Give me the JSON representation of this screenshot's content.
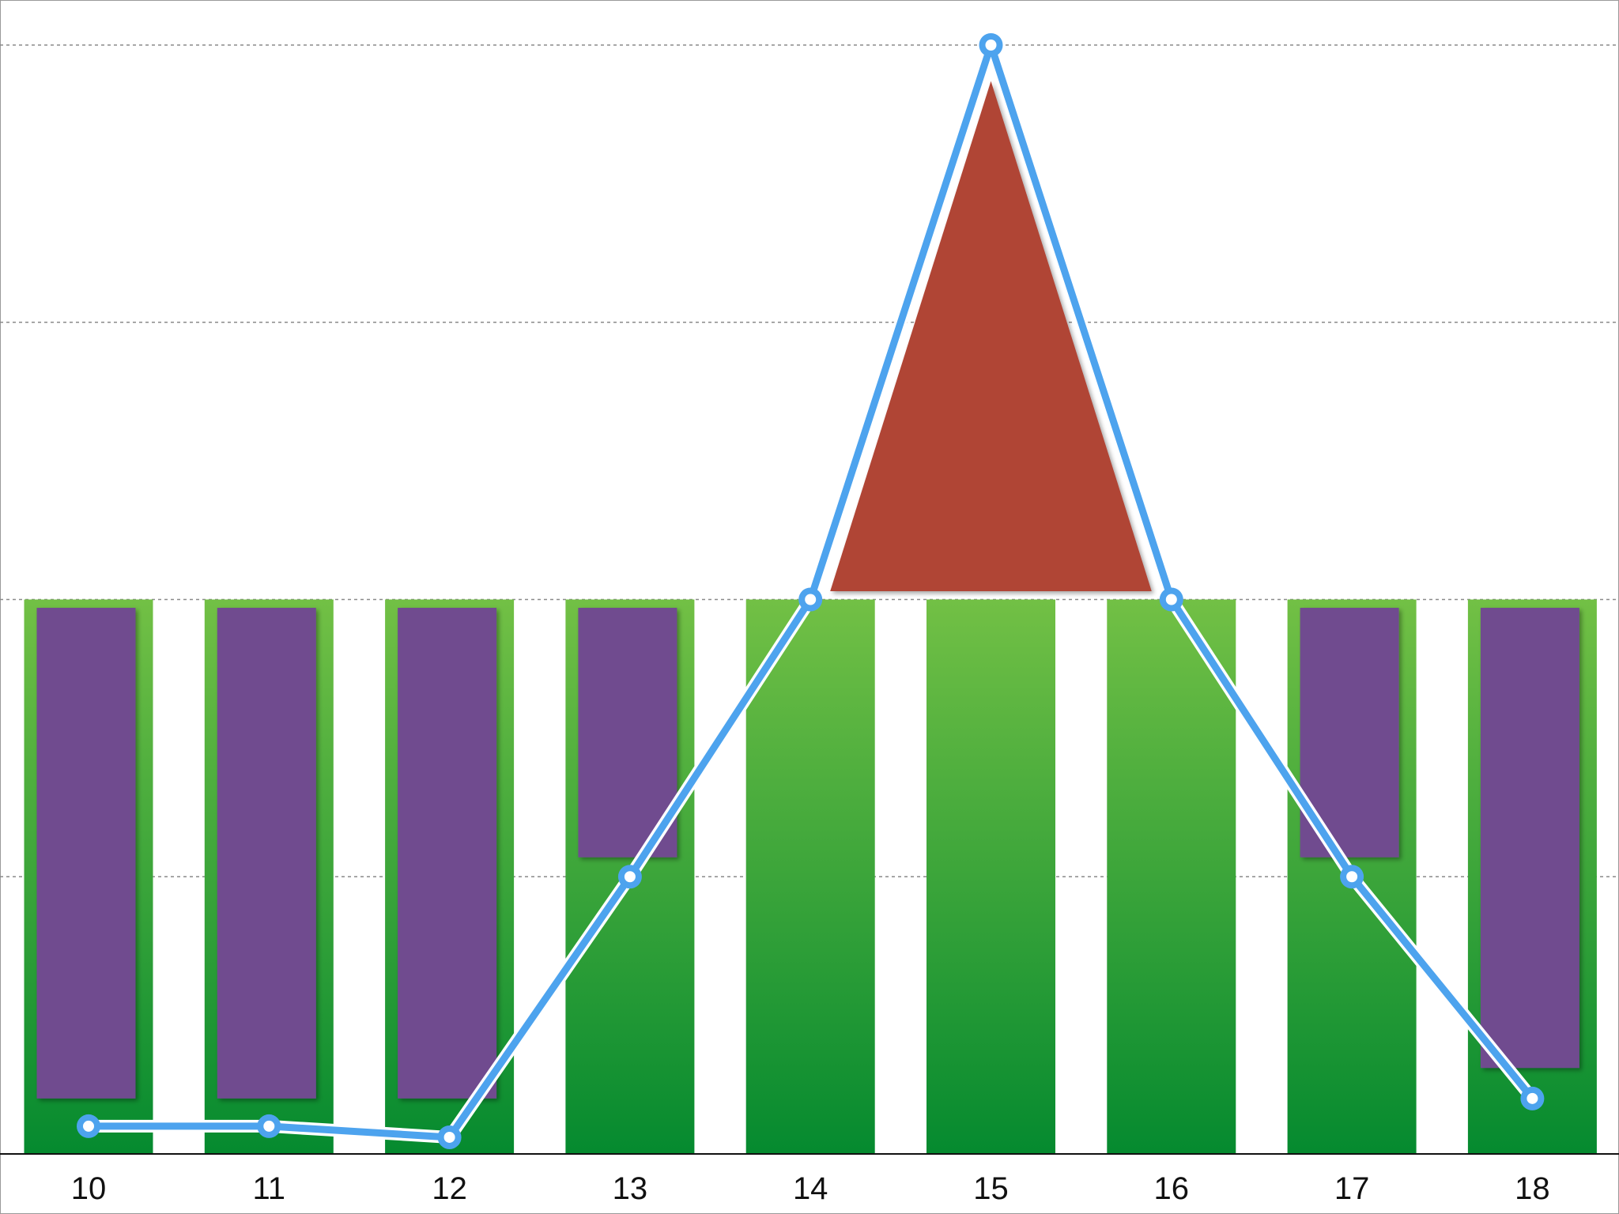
{
  "chart_data": {
    "type": "bar",
    "categories": [
      "10",
      "11",
      "12",
      "13",
      "14",
      "15",
      "16",
      "17",
      "18"
    ],
    "ylim": [
      0,
      4
    ],
    "grid": true,
    "series": [
      {
        "type": "bar",
        "values": [
          2,
          2,
          2,
          2,
          2,
          2,
          2,
          2,
          2
        ],
        "color": "#3aa33a"
      },
      {
        "type": "floating-bar",
        "ranges": [
          [
            0.2,
            1.97
          ],
          [
            0.2,
            1.97
          ],
          [
            0.2,
            1.97
          ],
          [
            1.07,
            1.97
          ],
          null,
          null,
          null,
          [
            1.07,
            1.97
          ],
          [
            0.31,
            1.97
          ]
        ],
        "color": "#6f4b8f"
      },
      {
        "type": "triangle",
        "category": "15",
        "range": [
          2.03,
          3.87
        ],
        "base_span": [
          "14",
          "16"
        ],
        "color": "#b04435"
      },
      {
        "type": "line",
        "values": [
          0.1,
          0.1,
          0.06,
          1.0,
          2.0,
          4.0,
          2.0,
          1.0,
          0.2
        ],
        "color": "#4da3ee"
      }
    ]
  }
}
